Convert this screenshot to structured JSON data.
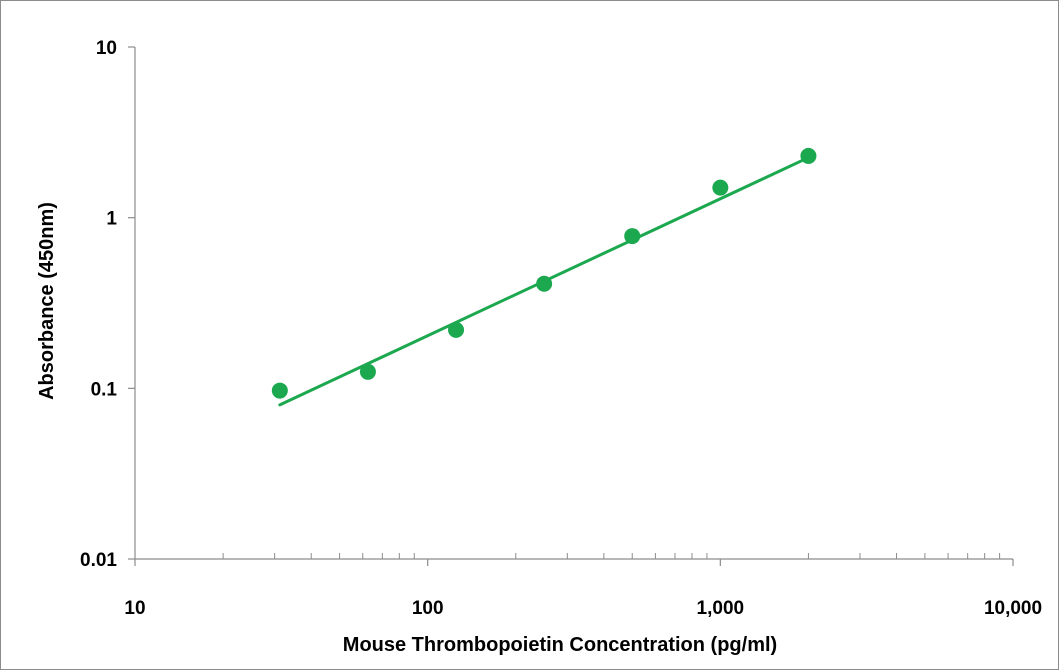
{
  "chart_data": {
    "type": "scatter",
    "title": "",
    "xlabel": "Mouse Thrombopoietin Concentration (pg/ml)",
    "ylabel": "Absorbance (450nm)",
    "x_scale": "log",
    "y_scale": "log",
    "xlim": [
      10,
      10000
    ],
    "ylim": [
      0.01,
      10
    ],
    "x_ticks": [
      {
        "value": 10,
        "label": "10"
      },
      {
        "value": 100,
        "label": "100"
      },
      {
        "value": 1000,
        "label": "1,000"
      },
      {
        "value": 10000,
        "label": "10,000"
      }
    ],
    "y_ticks": [
      {
        "value": 0.01,
        "label": "0.01"
      },
      {
        "value": 0.1,
        "label": "0.1"
      },
      {
        "value": 1,
        "label": "1"
      },
      {
        "value": 10,
        "label": "10"
      }
    ],
    "grid": false,
    "legend": "none",
    "series": [
      {
        "x": [
          31.25,
          62.5,
          125,
          250,
          500,
          1000,
          2000
        ],
        "y": [
          0.097,
          0.125,
          0.22,
          0.41,
          0.78,
          1.5,
          2.3
        ],
        "color": "#1ba84f",
        "marker": "circle"
      }
    ],
    "trendline": {
      "type": "power",
      "x": [
        31.25,
        2000
      ],
      "y": [
        0.08,
        2.25
      ],
      "color": "#1ba84f"
    },
    "axis_color": "#8c8c8c"
  }
}
